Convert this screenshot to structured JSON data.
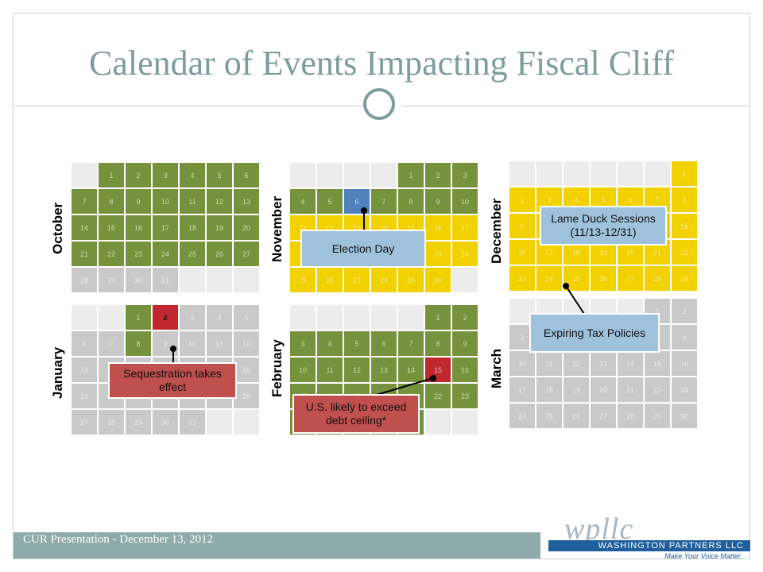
{
  "slide": {
    "title": "Calendar of Events Impacting Fiscal Cliff",
    "footer": "CUR Presentation - December 13, 2012"
  },
  "logo": {
    "script_text": "wpllc",
    "name": "WASHINGTON PARTNERS LLC",
    "tagline": "Make Your Voice Matter."
  },
  "callouts": {
    "election_day": "Election Day",
    "lame_duck": "Lame Duck Sessions (11/13-12/31)",
    "expiring_tax": "Expiring Tax Policies",
    "sequestration": "Sequestration takes effect",
    "debt_ceiling": "U.S. likely to exceed debt ceiling*"
  },
  "colors": {
    "green": "#76923c",
    "yellow": "#f2d100",
    "gray": "#c9c9c9",
    "blue": "#4f81bd",
    "red": "#c0282d",
    "title": "#7c9d9a"
  },
  "months": [
    {
      "key": "october",
      "label": "October",
      "pad": 1,
      "days": 31,
      "color": "green",
      "count_colored": 27,
      "highlights": {}
    },
    {
      "key": "november",
      "label": "November",
      "pad": 4,
      "days": 30,
      "color": "yellow",
      "before_color": "green",
      "before_until": 10,
      "highlights": {
        "6": "blue"
      }
    },
    {
      "key": "december",
      "label": "December",
      "pad": 6,
      "days": 31,
      "color": "yellow",
      "highlights": {
        "31": "red"
      }
    },
    {
      "key": "january",
      "label": "January",
      "pad": 2,
      "days": 31,
      "color": "gray",
      "highlights": {
        "1": "green",
        "2": "red",
        "8": "green"
      }
    },
    {
      "key": "february",
      "label": "February",
      "pad": 5,
      "days": 28,
      "color": "green",
      "highlights": {
        "15": "red"
      }
    },
    {
      "key": "march",
      "label": "March",
      "pad": 5,
      "days": 31,
      "color": "gray",
      "highlights": {}
    }
  ]
}
